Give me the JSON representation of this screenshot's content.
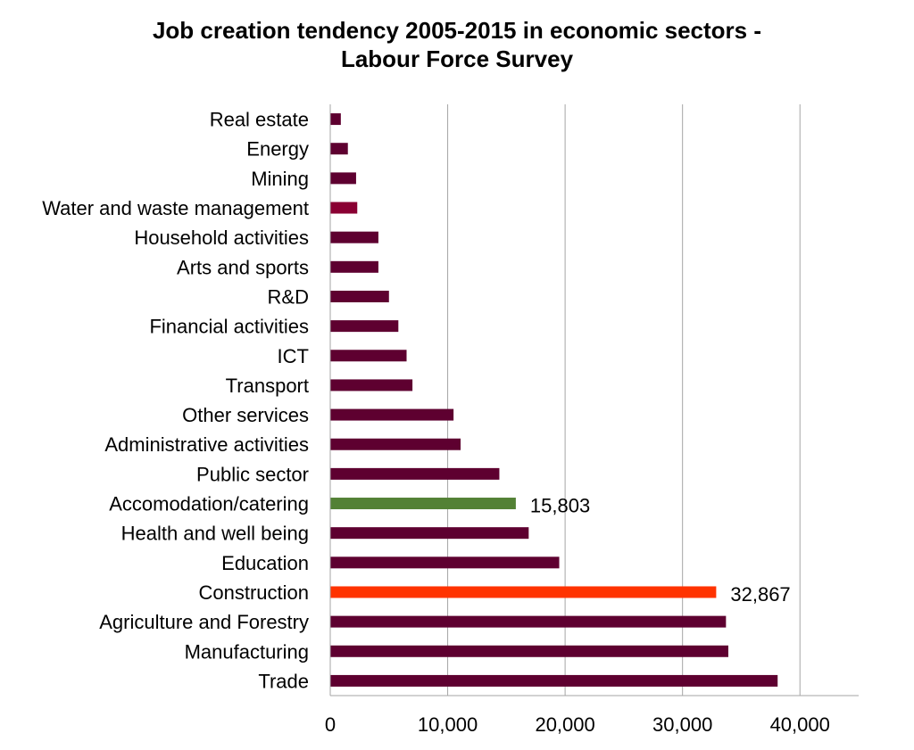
{
  "chart_data": {
    "type": "bar",
    "orientation": "horizontal",
    "title_line1": "Job creation tendency 2005-2015 in economic sectors -",
    "title_line2": "Labour Force Survey",
    "xlim": [
      0,
      45000
    ],
    "xticks": [
      0,
      10000,
      20000,
      30000,
      40000
    ],
    "xtick_labels": [
      "0",
      "10,000",
      "20,000",
      "30,000",
      "40,000"
    ],
    "grid": "vertical",
    "legend": "none",
    "default_color": "#5e0030",
    "categories": [
      {
        "label": "Real estate",
        "value": 900,
        "color": "#5e0030"
      },
      {
        "label": "Energy",
        "value": 1500,
        "color": "#5e0030"
      },
      {
        "label": "Mining",
        "value": 2200,
        "color": "#5e0030"
      },
      {
        "label": "Water and waste management",
        "value": 2300,
        "color": "#8a0033"
      },
      {
        "label": "Household activities",
        "value": 4100,
        "color": "#5e0030"
      },
      {
        "label": "Arts and sports",
        "value": 4100,
        "color": "#5e0030"
      },
      {
        "label": "R&D",
        "value": 5000,
        "color": "#5e0030"
      },
      {
        "label": "Financial activities",
        "value": 5800,
        "color": "#5e0030"
      },
      {
        "label": "ICT",
        "value": 6500,
        "color": "#5e0030"
      },
      {
        "label": "Transport",
        "value": 7000,
        "color": "#5e0030"
      },
      {
        "label": "Other services",
        "value": 10500,
        "color": "#5e0030"
      },
      {
        "label": "Administrative activities",
        "value": 11100,
        "color": "#5e0030"
      },
      {
        "label": "Public sector",
        "value": 14400,
        "color": "#5e0030"
      },
      {
        "label": "Accomodation/catering",
        "value": 15803,
        "color": "#538135",
        "data_label": "15,803"
      },
      {
        "label": "Health and well being",
        "value": 16900,
        "color": "#5e0030"
      },
      {
        "label": "Education",
        "value": 19500,
        "color": "#5e0030"
      },
      {
        "label": "Construction",
        "value": 32867,
        "color": "#ff3300",
        "data_label": "32,867"
      },
      {
        "label": "Agriculture and Forestry",
        "value": 33700,
        "color": "#5e0030"
      },
      {
        "label": "Manufacturing",
        "value": 33900,
        "color": "#5e0030"
      },
      {
        "label": "Trade",
        "value": 38100,
        "color": "#5e0030"
      }
    ]
  }
}
